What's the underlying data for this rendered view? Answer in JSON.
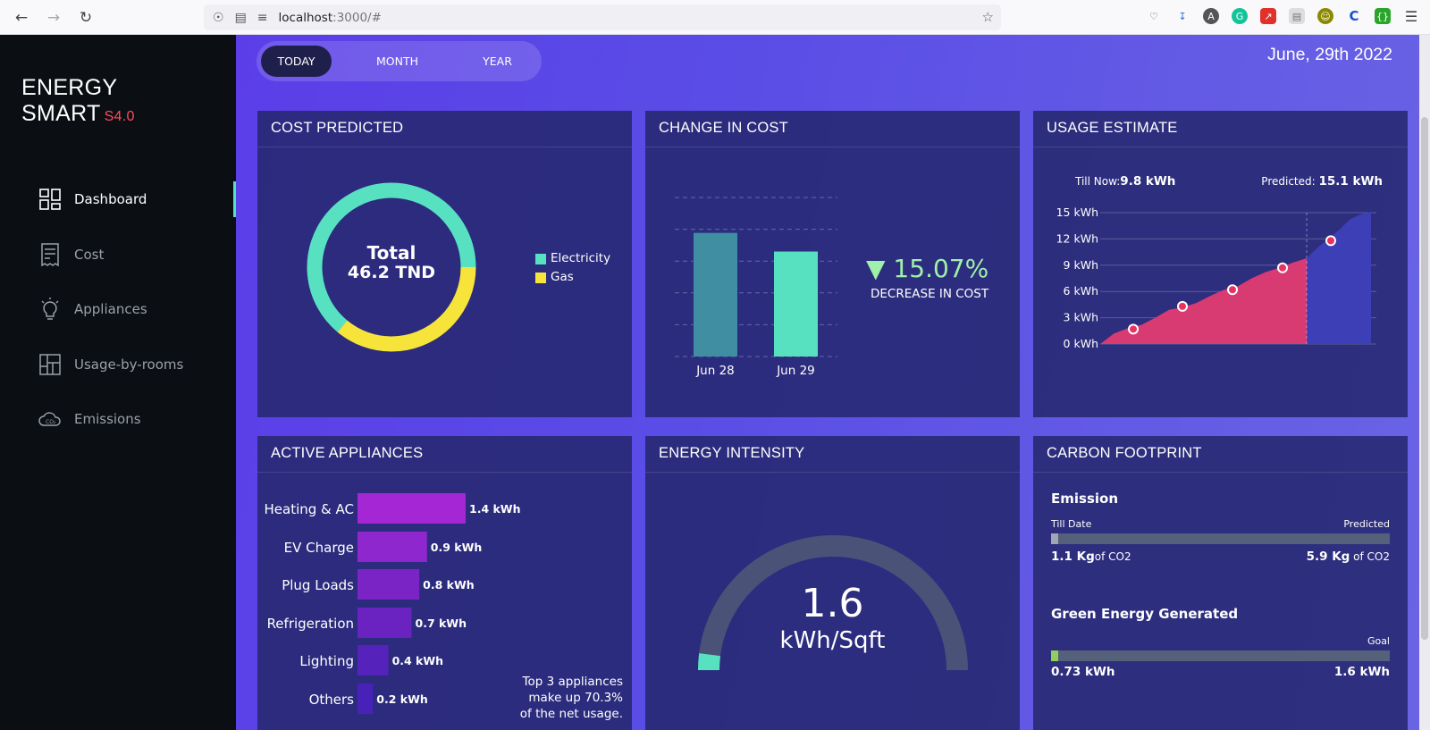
{
  "browser": {
    "url_host": "localhost",
    "url_rest": ":3000/#"
  },
  "brand": {
    "name": "ENERGY SMART",
    "version": "S4.0"
  },
  "nav": [
    {
      "label": "Dashboard",
      "icon": "dashboard-icon",
      "active": true
    },
    {
      "label": "Cost",
      "icon": "receipt-icon",
      "active": false
    },
    {
      "label": "Appliances",
      "icon": "lightbulb-icon",
      "active": false
    },
    {
      "label": "Usage-by-rooms",
      "icon": "floorplan-icon",
      "active": false
    },
    {
      "label": "Emissions",
      "icon": "co2-cloud-icon",
      "active": false
    }
  ],
  "range_tabs": [
    {
      "label": "TODAY",
      "active": true
    },
    {
      "label": "MONTH",
      "active": false
    },
    {
      "label": "YEAR",
      "active": false
    }
  ],
  "date": "June, 29th 2022",
  "cost_predicted": {
    "title": "COST PREDICTED",
    "center_line1": "Total",
    "center_line2": "46.2 TND",
    "legend": [
      {
        "label": "Electricity",
        "color": "#58e1c1"
      },
      {
        "label": "Gas",
        "color": "#f7e43a"
      }
    ]
  },
  "change_in_cost": {
    "title": "CHANGE IN COST",
    "percent": "▼ 15.07%",
    "caption": "DECREASE IN COST"
  },
  "usage_estimate": {
    "title": "USAGE ESTIMATE",
    "till_now_label": "Till Now:",
    "till_now_value": "9.8 kWh",
    "predicted_label": "Predicted:",
    "predicted_value": "15.1 kWh"
  },
  "active_appliances": {
    "title": "ACTIVE APPLIANCES",
    "note_line1": "Top 3 appliances",
    "note_line2": "make up 70.3%",
    "note_line3": "of the net usage."
  },
  "energy_intensity": {
    "title": "ENERGY INTENSITY",
    "value": "1.6",
    "unit": "kWh/Sqft",
    "fill_fraction": 0.04
  },
  "carbon_footprint": {
    "title": "CARBON FOOTPRINT",
    "emission_heading": "Emission",
    "till_date_label": "Till Date",
    "predicted_label": "Predicted",
    "till_value": "1.1 Kg",
    "predicted_value": "5.9 Kg",
    "unit_suffix": "of CO2",
    "emission_fraction": 0.01,
    "green_heading": "Green Energy Generated",
    "goal_label": "Goal",
    "green_value": "0.73 kWh",
    "goal_value": "1.6 kWh",
    "green_fraction": 0.01
  },
  "chart_data": [
    {
      "type": "pie",
      "title": "COST PREDICTED",
      "labels": [
        "Electricity",
        "Gas"
      ],
      "values": [
        64,
        36
      ],
      "colors": [
        "#58e1c1",
        "#f7e43a"
      ]
    },
    {
      "type": "bar",
      "title": "CHANGE IN COST",
      "categories": [
        "Jun 28",
        "Jun 29"
      ],
      "values": [
        54.4,
        46.2
      ],
      "colors": [
        "#3f8ea1",
        "#58e1c1"
      ],
      "ylim": [
        0,
        70
      ]
    },
    {
      "type": "area",
      "title": "USAGE ESTIMATE",
      "yticks": [
        "0 kWh",
        "3 kWh",
        "6 kWh",
        "9 kWh",
        "12 kWh",
        "15 kWh"
      ],
      "ylim": [
        0,
        15
      ],
      "series": [
        {
          "values": [
            0,
            1.2,
            1.8,
            2.2,
            3.0,
            3.9,
            4.2,
            4.7,
            5.5,
            6.2,
            6.6,
            7.5,
            8.2,
            8.7,
            9.3,
            9.8
          ]
        },
        {
          "values": [
            9.8,
            11.0,
            12.0,
            13.0,
            14.2,
            14.8,
            15.1
          ]
        }
      ],
      "markers": [
        1.7,
        4.3,
        6.2,
        8.7,
        11.8
      ]
    },
    {
      "type": "bar",
      "title": "ACTIVE APPLIANCES",
      "orientation": "horizontal",
      "categories": [
        "Heating & AC",
        "EV Charge",
        "Plug Loads",
        "Refrigeration",
        "Lighting",
        "Others"
      ],
      "values": [
        1.4,
        0.9,
        0.8,
        0.7,
        0.4,
        0.2
      ],
      "value_labels": [
        "1.4 kWh",
        "0.9 kWh",
        "0.8 kWh",
        "0.7 kWh",
        "0.4 kWh",
        "0.2 kWh"
      ],
      "colors": [
        "#a426d4",
        "#8e27cd",
        "#7a24c6",
        "#6a22c0",
        "#5522bc",
        "#4822b8"
      ]
    }
  ]
}
